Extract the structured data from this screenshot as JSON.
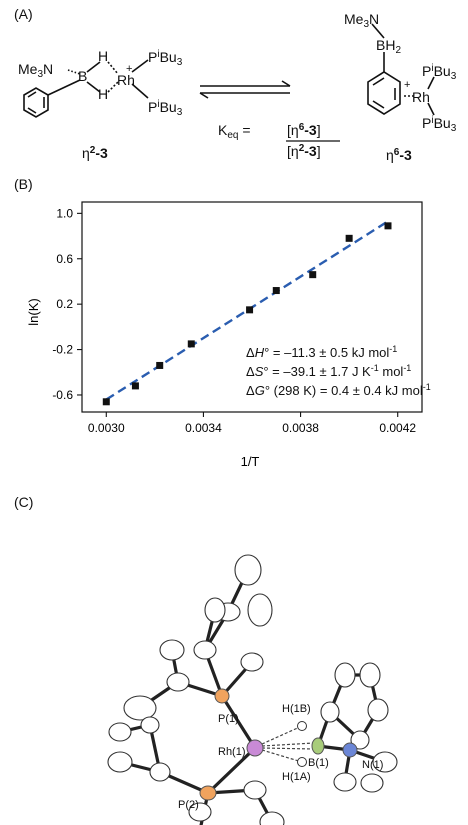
{
  "panel_a": {
    "label": "(A)",
    "left": {
      "nme3": "Me3N",
      "boron": "B",
      "h_top": "H",
      "h_bot": "H",
      "rh": "Rh",
      "charge": "+",
      "p_top": "PiBu3",
      "p_bot": "PiBu3",
      "compound": "η2-3"
    },
    "right": {
      "nme3": "Me3N",
      "bh2": "BH2",
      "rh": "Rh",
      "charge": "+",
      "p_top": "PiBu3",
      "p_bot": "PiBu3",
      "compound": "η6-3"
    },
    "keq_lhs": "Keq =",
    "keq_num": "[η6-3]",
    "keq_den": "[η2-3]"
  },
  "panel_b": {
    "label": "(B)",
    "xlabel": "1/T",
    "ylabel": "ln(K)",
    "annotation_lines": [
      "ΔH° = –11.3 ± 0.5 kJ mol-1",
      "ΔS° = –39.1 ± 1.7 J K-1 mol-1",
      "ΔG° (298 K) = 0.4 ± 0.4 kJ mol-1"
    ]
  },
  "panel_c": {
    "label": "(C)",
    "atoms": {
      "p1": "P(1)",
      "p2": "P(2)",
      "rh1": "Rh(1)",
      "h1b": "H(1B)",
      "h1a": "H(1A)",
      "b1": "B(1)",
      "n1": "N(1)"
    },
    "colors": {
      "rh": "#c98ad6",
      "p": "#f0a35e",
      "b": "#a8cc7a",
      "n": "#6b86d6"
    }
  },
  "chart_data": {
    "type": "scatter",
    "title": "",
    "xlabel": "1/T",
    "ylabel": "ln(K)",
    "xlim": [
      0.0029,
      0.0043
    ],
    "ylim": [
      -0.75,
      1.1
    ],
    "xticks": [
      "0.0030",
      "0.0034",
      "0.0038",
      "0.0042"
    ],
    "xtick_values": [
      0.003,
      0.0034,
      0.0038,
      0.0042
    ],
    "yticks": [
      "-0.6",
      "-0.2",
      "0.2",
      "0.6",
      "1.0"
    ],
    "ytick_values": [
      -0.6,
      -0.2,
      0.2,
      0.6,
      1.0
    ],
    "series": [
      {
        "marker": "square",
        "color": "#111111",
        "x": [
          0.003,
          0.00312,
          0.00322,
          0.00335,
          0.00359,
          0.0037,
          0.00385,
          0.004,
          0.00416
        ],
        "y": [
          -0.66,
          -0.52,
          -0.34,
          -0.15,
          0.15,
          0.32,
          0.46,
          0.78,
          0.89
        ]
      }
    ],
    "fit_line": {
      "style": "dashed",
      "color": "#2a5db0",
      "x": [
        0.003,
        0.00416
      ],
      "y": [
        -0.64,
        0.93
      ]
    }
  }
}
